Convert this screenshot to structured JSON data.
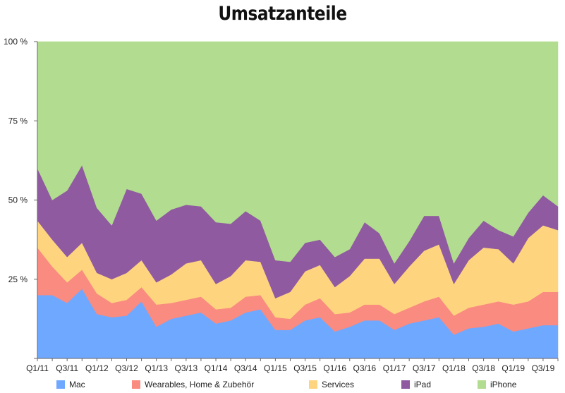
{
  "chart_data": {
    "type": "area",
    "stacked": true,
    "percent": true,
    "title": "Umsatzanteile",
    "xlabel": "",
    "ylabel": "",
    "ylim": [
      0,
      100
    ],
    "yticks": [
      0,
      25,
      50,
      75,
      100
    ],
    "ytick_labels": [
      "",
      "25 %",
      "50 %",
      "75 %",
      "100 %"
    ],
    "x": [
      "Q1/11",
      "Q2/11",
      "Q3/11",
      "Q4/11",
      "Q1/12",
      "Q2/12",
      "Q3/12",
      "Q4/12",
      "Q1/13",
      "Q2/13",
      "Q3/13",
      "Q4/13",
      "Q1/14",
      "Q2/14",
      "Q3/14",
      "Q4/14",
      "Q1/15",
      "Q2/15",
      "Q3/15",
      "Q4/15",
      "Q1/16",
      "Q2/16",
      "Q3/16",
      "Q4/16",
      "Q1/17",
      "Q2/17",
      "Q3/17",
      "Q4/17",
      "Q1/18",
      "Q2/18",
      "Q3/18",
      "Q4/18",
      "Q1/19",
      "Q2/19",
      "Q3/19",
      "Q4/19"
    ],
    "xtick_labels": [
      "Q1/11",
      "Q3/11",
      "Q1/12",
      "Q3/12",
      "Q1/13",
      "Q3/13",
      "Q1/14",
      "Q3/14",
      "Q1/15",
      "Q3/15",
      "Q1/16",
      "Q3/16",
      "Q1/17",
      "Q3/17",
      "Q1/18",
      "Q3/18",
      "Q1/19",
      "Q3/19"
    ],
    "legend_position": "bottom",
    "series": [
      {
        "name": "Mac",
        "color": "#6fa8ff",
        "values": [
          20,
          20,
          17.5,
          22,
          14,
          13,
          13.5,
          18,
          10,
          12.5,
          13.5,
          14.5,
          11,
          12,
          14.5,
          15.5,
          9,
          9,
          12,
          13,
          8.5,
          10,
          12,
          12,
          9,
          11,
          12,
          13,
          7.5,
          9.5,
          10,
          11,
          8.5,
          9.5,
          10.5,
          10.5
        ]
      },
      {
        "name": "Wearables, Home & Zubehör",
        "color": "#f98b80",
        "values": [
          15,
          9,
          6.5,
          6,
          6.5,
          4.5,
          5,
          4.5,
          7,
          5,
          5,
          5,
          4.5,
          4,
          5,
          4.5,
          4,
          3.5,
          5,
          6,
          5.5,
          4.5,
          5,
          5,
          5,
          5,
          6,
          6.5,
          6,
          6.5,
          7,
          7,
          8.5,
          8.5,
          10.5,
          10.5
        ]
      },
      {
        "name": "Services",
        "color": "#ffd47f",
        "values": [
          8.5,
          8.5,
          8,
          8.5,
          6.5,
          7.5,
          8.5,
          8.5,
          7,
          9,
          11.5,
          11.5,
          8,
          10,
          11.5,
          10.5,
          6,
          8.5,
          10.5,
          10.5,
          8.5,
          11.5,
          14.5,
          14.5,
          9.5,
          13,
          16,
          16.5,
          10,
          15,
          18,
          16.5,
          13,
          20,
          21,
          19.5
        ]
      },
      {
        "name": "iPad",
        "color": "#8f5aa0",
        "values": [
          16.5,
          12.5,
          21,
          24.5,
          20.5,
          17,
          26.5,
          21,
          19.5,
          20.5,
          18.5,
          17,
          19.5,
          16.5,
          15.5,
          13,
          12,
          9.5,
          9,
          8,
          9.5,
          8.5,
          11.5,
          8,
          6.5,
          8,
          11,
          9,
          6.5,
          7,
          8.5,
          6,
          8.5,
          8,
          9.5,
          7.5
        ]
      },
      {
        "name": "iPhone",
        "color": "#b2dc8f",
        "values": [
          40,
          50,
          47,
          39,
          52.5,
          58,
          46.5,
          48,
          56.5,
          53,
          51.5,
          52,
          57,
          57.5,
          53.5,
          56.5,
          69,
          69.5,
          63.5,
          62.5,
          68,
          65.5,
          57,
          60.5,
          70,
          63,
          55,
          55,
          70,
          62,
          56.5,
          59.5,
          61.5,
          54,
          48.5,
          52
        ]
      }
    ]
  }
}
